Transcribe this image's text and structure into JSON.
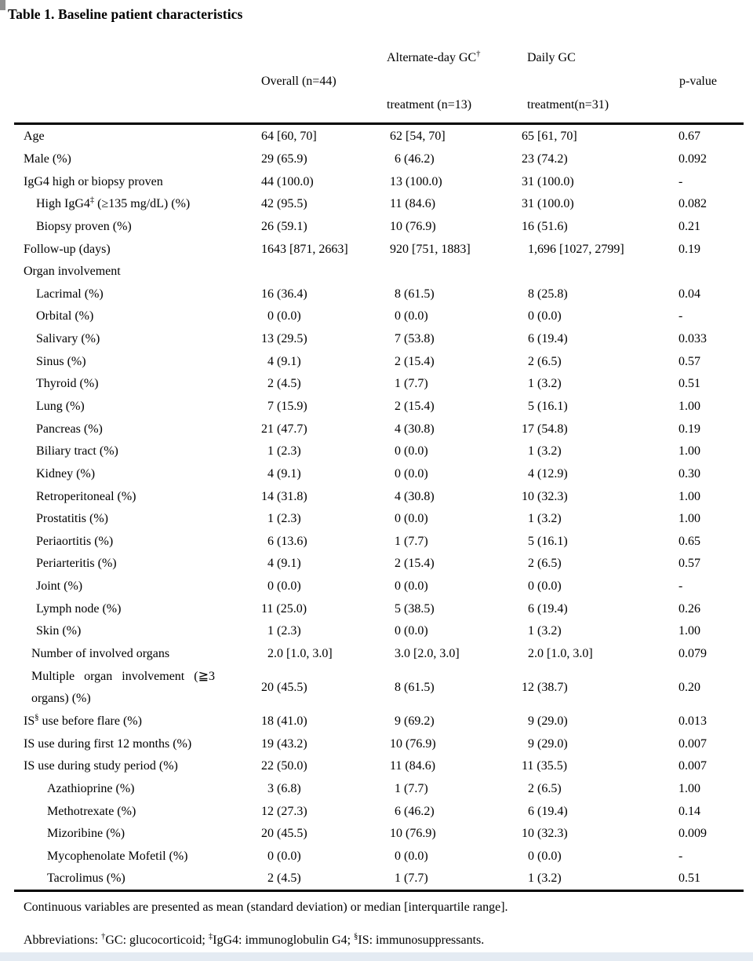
{
  "page": {
    "title": "Table 1. Baseline patient characteristics"
  },
  "header": {
    "overall": "Overall (n=44)",
    "alt_line1": "Alternate-day GC†",
    "alt_line2": "treatment (n=13)",
    "daily_line1": "Daily GC",
    "daily_line2": "treatment(n=31)",
    "p": "p-value"
  },
  "table": {
    "rows": [
      {
        "label": "Age",
        "indent": 0,
        "overall": "64 [60, 70]",
        "alt": "62 [54, 70]",
        "daily": "65 [61, 70]",
        "p": "0.67"
      },
      {
        "label": "Male (%)",
        "indent": 0,
        "overall": "29 (65.9)",
        "alt": "6 (46.2)",
        "daily": "23 (74.2)",
        "p": "0.092"
      },
      {
        "label": "IgG4 high or biopsy proven",
        "indent": 0,
        "overall": "44 (100.0)",
        "alt": "13 (100.0)",
        "daily": "31 (100.0)",
        "p": "-"
      },
      {
        "label": "High IgG4‡ (≥135 mg/dL) (%)",
        "indent": 2,
        "overall": "42 (95.5)",
        "alt": "11 (84.6)",
        "daily": "31 (100.0)",
        "p": "0.082"
      },
      {
        "label": "Biopsy proven (%)",
        "indent": 2,
        "overall": "26 (59.1)",
        "alt": "10 (76.9)",
        "daily": "16 (51.6)",
        "p": "0.21"
      },
      {
        "label": "Follow-up (days)",
        "indent": 0,
        "overall": "1643 [871, 2663]",
        "alt": "920 [751, 1883]",
        "daily": "1,696 [1027, 2799]",
        "p": "0.19"
      },
      {
        "label": "Organ involvement",
        "indent": 0,
        "overall": "",
        "alt": "",
        "daily": "",
        "p": ""
      },
      {
        "label": "Lacrimal (%)",
        "indent": 2,
        "overall": "16 (36.4)",
        "alt": "8 (61.5)",
        "daily": "8 (25.8)",
        "p": "0.04"
      },
      {
        "label": "Orbital (%)",
        "indent": 2,
        "overall": "0 (0.0)",
        "alt": "0 (0.0)",
        "daily": "0 (0.0)",
        "p": "-"
      },
      {
        "label": "Salivary (%)",
        "indent": 2,
        "overall": "13 (29.5)",
        "alt": "7 (53.8)",
        "daily": "6 (19.4)",
        "p": "0.033"
      },
      {
        "label": "Sinus (%)",
        "indent": 2,
        "overall": "4 (9.1)",
        "alt": "2 (15.4)",
        "daily": "2 (6.5)",
        "p": "0.57"
      },
      {
        "label": "Thyroid (%)",
        "indent": 2,
        "overall": "2 (4.5)",
        "alt": "1 (7.7)",
        "daily": "1 (3.2)",
        "p": "0.51"
      },
      {
        "label": "Lung (%)",
        "indent": 2,
        "overall": "7 (15.9)",
        "alt": "2 (15.4)",
        "daily": "5 (16.1)",
        "p": "1.00"
      },
      {
        "label": "Pancreas (%)",
        "indent": 2,
        "overall": "21 (47.7)",
        "alt": "4 (30.8)",
        "daily": "17 (54.8)",
        "p": "0.19"
      },
      {
        "label": "Biliary tract (%)",
        "indent": 2,
        "overall": "1 (2.3)",
        "alt": "0 (0.0)",
        "daily": "1 (3.2)",
        "p": "1.00"
      },
      {
        "label": "Kidney (%)",
        "indent": 2,
        "overall": "4 (9.1)",
        "alt": "0 (0.0)",
        "daily": "4 (12.9)",
        "p": "0.30"
      },
      {
        "label": "Retroperitoneal (%)",
        "indent": 2,
        "overall": "14 (31.8)",
        "alt": "4 (30.8)",
        "daily": "10 (32.3)",
        "p": "1.00"
      },
      {
        "label": "Prostatitis (%)",
        "indent": 2,
        "overall": "1 (2.3)",
        "alt": "0 (0.0)",
        "daily": "1 (3.2)",
        "p": "1.00"
      },
      {
        "label": "Periaortitis (%)",
        "indent": 2,
        "overall": "6 (13.6)",
        "alt": "1 (7.7)",
        "daily": "5 (16.1)",
        "p": "0.65"
      },
      {
        "label": "Periarteritis (%)",
        "indent": 2,
        "overall": "4 (9.1)",
        "alt": "2 (15.4)",
        "daily": "2 (6.5)",
        "p": "0.57"
      },
      {
        "label": "Joint (%)",
        "indent": 2,
        "overall": "0 (0.0)",
        "alt": "0 (0.0)",
        "daily": "0 (0.0)",
        "p": "-"
      },
      {
        "label": "Lymph node (%)",
        "indent": 2,
        "overall": "11 (25.0)",
        "alt": "5 (38.5)",
        "daily": "6 (19.4)",
        "p": "0.26"
      },
      {
        "label": "Skin (%)",
        "indent": 2,
        "overall": "1 (2.3)",
        "alt": "0 (0.0)",
        "daily": "1 (3.2)",
        "p": "1.00"
      },
      {
        "label": "Number of involved organs",
        "indent": 1,
        "overall": "2.0 [1.0, 3.0]",
        "alt": "3.0 [2.0, 3.0]",
        "daily": "2.0 [1.0, 3.0]",
        "p": "0.079"
      },
      {
        "label": "Multiple organ involvement (≧3",
        "label2": "organs) (%)",
        "indent": 1,
        "overall": "20 (45.5)",
        "alt": "8 (61.5)",
        "daily": "12 (38.7)",
        "p": "0.20"
      },
      {
        "label": "IS§ use before flare (%)",
        "indent": 0,
        "overall": "18 (41.0)",
        "alt": "9 (69.2)",
        "daily": "9 (29.0)",
        "p": "0.013"
      },
      {
        "label": "IS use during first 12 months (%)",
        "indent": 0,
        "overall": "19 (43.2)",
        "alt": "10 (76.9)",
        "daily": "9 (29.0)",
        "p": "0.007"
      },
      {
        "label": "IS use during study period (%)",
        "indent": 0,
        "overall": "22 (50.0)",
        "alt": "11 (84.6)",
        "daily": "11 (35.5)",
        "p": "0.007"
      },
      {
        "label": "Azathioprine (%)",
        "indent": 3,
        "overall": "3 (6.8)",
        "alt": "1 (7.7)",
        "daily": "2 (6.5)",
        "p": "1.00"
      },
      {
        "label": "Methotrexate (%)",
        "indent": 3,
        "overall": "12 (27.3)",
        "alt": "6 (46.2)",
        "daily": "6 (19.4)",
        "p": "0.14"
      },
      {
        "label": "Mizoribine (%)",
        "indent": 3,
        "overall": "20 (45.5)",
        "alt": "10 (76.9)",
        "daily": "10 (32.3)",
        "p": "0.009"
      },
      {
        "label": "Mycophenolate Mofetil (%)",
        "indent": 3,
        "overall": "0 (0.0)",
        "alt": "0 (0.0)",
        "daily": "0 (0.0)",
        "p": "-"
      },
      {
        "label": "Tacrolimus (%)",
        "indent": 3,
        "overall": "2 (4.5)",
        "alt": "1 (7.7)",
        "daily": "1 (3.2)",
        "p": "0.51"
      }
    ]
  },
  "footnotes": {
    "line1": "Continuous variables are presented as mean (standard deviation) or median [interquartile range].",
    "line2": "Abbreviations: †GC: glucocorticoid; ‡IgG4: immunoglobulin G4; §IS: immunosuppressants."
  }
}
